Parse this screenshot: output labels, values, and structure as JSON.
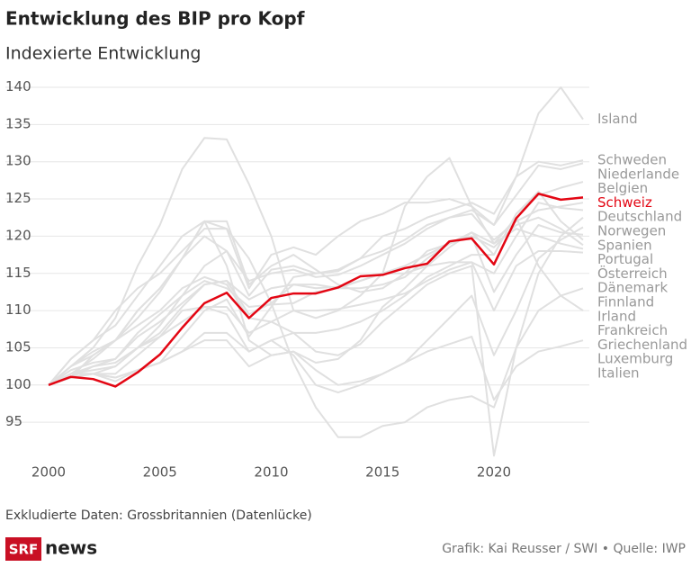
{
  "chart_data": {
    "type": "line",
    "title": "Entwicklung des BIP pro Kopf",
    "subtitle": "Indexierte Entwicklung",
    "note": "Exkludierte Daten: Grossbritannien (Datenlücke)",
    "credit": "Grafik: Kai Reusser / SWI • Quelle: IWP",
    "logo": {
      "brand": "SRF",
      "product": "news"
    },
    "x": [
      2000,
      2001,
      2002,
      2003,
      2004,
      2005,
      2006,
      2007,
      2008,
      2009,
      2010,
      2011,
      2012,
      2013,
      2014,
      2015,
      2016,
      2017,
      2018,
      2019,
      2020,
      2021,
      2022,
      2023,
      2024
    ],
    "xlim": [
      2000,
      2024
    ],
    "xticks": [
      2000,
      2005,
      2010,
      2015,
      2020
    ],
    "ylim": [
      90,
      140
    ],
    "yticks": [
      95,
      100,
      105,
      110,
      115,
      120,
      125,
      130,
      135,
      140
    ],
    "grid": true,
    "series": [
      {
        "name": "Island",
        "color": "#e0e0e0",
        "label_color": "#999999",
        "values": [
          100,
          102.5,
          105,
          109,
          116,
          121.5,
          129,
          133.2,
          133,
          127,
          120,
          110,
          109,
          110,
          112,
          115,
          124,
          128,
          130.5,
          124,
          121.5,
          128,
          136.5,
          140,
          135.7
        ]
      },
      {
        "name": "Schweden",
        "color": "#e0e0e0",
        "label_color": "#999999",
        "values": [
          100,
          101.5,
          103.5,
          106,
          110,
          113,
          117,
          120,
          118,
          112,
          115.5,
          116,
          115,
          115.5,
          117,
          120,
          121,
          122.5,
          123.5,
          124.5,
          123,
          128,
          130,
          129.5,
          130.2
        ]
      },
      {
        "name": "Niederlande",
        "color": "#e0e0e0",
        "label_color": "#999999",
        "values": [
          100,
          101.5,
          102,
          102.5,
          105,
          108,
          112,
          116,
          118,
          114,
          115,
          115.5,
          114.5,
          114.8,
          116,
          117.5,
          119,
          121,
          122.5,
          123.5,
          121.5,
          125.5,
          129.5,
          129,
          129.8
        ]
      },
      {
        "name": "Belgien",
        "color": "#e0e0e0",
        "label_color": "#999999",
        "values": [
          100,
          101,
          102.5,
          103.5,
          106.5,
          108.5,
          111,
          113.5,
          114,
          111.5,
          113,
          113.5,
          113,
          113.2,
          114,
          115,
          116,
          117.5,
          119,
          120.5,
          117.5,
          123,
          125.5,
          126.5,
          127.3
        ]
      },
      {
        "name": "Schweiz",
        "color": "#e30613",
        "label_color": "#e30613",
        "values": [
          100,
          101.1,
          100.8,
          99.8,
          101.7,
          104.1,
          107.7,
          111,
          112.4,
          109,
          111.7,
          112.3,
          112.3,
          113.1,
          114.6,
          114.8,
          115.7,
          116.3,
          119.3,
          119.7,
          116.2,
          122.4,
          125.7,
          124.9,
          125.2
        ]
      },
      {
        "name": "Deutschland",
        "color": "#e0e0e0",
        "label_color": "#999999",
        "values": [
          100,
          101.5,
          101.5,
          101,
          102,
          103,
          106.5,
          110,
          111.5,
          106.5,
          110.5,
          114.5,
          115,
          115.3,
          117,
          118,
          119.5,
          121.5,
          122.5,
          123,
          119.5,
          122,
          123.5,
          124,
          124.5
        ]
      },
      {
        "name": "Norwegen",
        "color": "#e0e0e0",
        "label_color": "#999999",
        "values": [
          100,
          102,
          103,
          103.5,
          107,
          109.5,
          112,
          114,
          113,
          110.5,
          110.8,
          111,
          112.5,
          113,
          114,
          115,
          115,
          116,
          116.5,
          116.5,
          115,
          120,
          124.5,
          123.8,
          123.5
        ]
      },
      {
        "name": "Spanien",
        "color": "#e0e0e0",
        "label_color": "#999999",
        "values": [
          100,
          102.5,
          104.5,
          106,
          108,
          110,
          113,
          114.5,
          113.5,
          109,
          108.5,
          107,
          104.5,
          104,
          105.5,
          108.5,
          111,
          113.5,
          115,
          116,
          90.5,
          105,
          115,
          120,
          122.5
        ]
      },
      {
        "name": "Portugal",
        "color": "#e0e0e0",
        "label_color": "#999999",
        "values": [
          100,
          101.5,
          101.5,
          100.5,
          102,
          103,
          104.5,
          107,
          107,
          104.5,
          106,
          104,
          100,
          99,
          100,
          101.5,
          103,
          106,
          109,
          112,
          104,
          110,
          117,
          119.5,
          121.2
        ]
      },
      {
        "name": "Österreich",
        "color": "#e0e0e0",
        "label_color": "#999999",
        "values": [
          100,
          101,
          101.5,
          102.5,
          105,
          107,
          110.5,
          113.5,
          114,
          109.5,
          111,
          113.5,
          113.5,
          113,
          113,
          113.5,
          114.5,
          117,
          119,
          120,
          112.5,
          117.5,
          121.5,
          120.5,
          120.2
        ]
      },
      {
        "name": "Dänemark",
        "color": "#e0e0e0",
        "label_color": "#999999",
        "values": [
          100,
          101,
          101.5,
          101.5,
          104,
          106.5,
          110,
          110.5,
          109.5,
          104.5,
          106,
          107,
          107,
          107.5,
          108.5,
          110,
          112,
          114.5,
          116,
          117.5,
          117.5,
          123,
          126,
          122,
          119.5
        ]
      },
      {
        "name": "Finnland",
        "color": "#e0e0e0",
        "label_color": "#999999",
        "values": [
          100,
          102.5,
          104,
          106,
          110,
          113,
          117,
          122,
          122,
          113.5,
          116,
          117.5,
          115.5,
          113.5,
          112.5,
          113,
          115,
          118,
          119,
          120,
          118.5,
          121.5,
          122.5,
          121,
          118.8
        ]
      },
      {
        "name": "Irland",
        "color": "#e0e0e0",
        "label_color": "#999999",
        "values": [
          100,
          103.5,
          106,
          108,
          112,
          116,
          120,
          122,
          116,
          106,
          104,
          104.5,
          103,
          103.5,
          106,
          110.5,
          113,
          116,
          118.5,
          120.5,
          119,
          121,
          120,
          119,
          118.3
        ]
      },
      {
        "name": "Frankreich",
        "color": "#e0e0e0",
        "label_color": "#999999",
        "values": [
          100,
          101.5,
          102.5,
          103,
          105,
          106.5,
          108.5,
          110.5,
          110.5,
          107,
          108.5,
          110,
          110,
          110.2,
          110.8,
          111.5,
          112.3,
          114,
          115.5,
          116.5,
          110,
          116,
          118,
          118,
          117.8
        ]
      },
      {
        "name": "Griechenland",
        "color": "#e0e0e0",
        "label_color": "#999999",
        "values": [
          100,
          103.5,
          106,
          110,
          113,
          115,
          118,
          121,
          121,
          117,
          111,
          103,
          97,
          93,
          93,
          94.5,
          95,
          97,
          98,
          98.5,
          97,
          105,
          110,
          112,
          113
        ]
      },
      {
        "name": "Luxemburg",
        "color": "#e0e0e0",
        "label_color": "#999999",
        "values": [
          100,
          101,
          104,
          106,
          109,
          112.5,
          117,
          122,
          121,
          113,
          117.5,
          118.5,
          117.5,
          120,
          122,
          123,
          124.5,
          124.5,
          125,
          124,
          119,
          122.5,
          116,
          112,
          110
        ]
      },
      {
        "name": "Italien",
        "color": "#e0e0e0",
        "label_color": "#999999",
        "values": [
          100,
          101.5,
          101.5,
          101,
          102,
          103,
          104.5,
          106,
          106,
          102.5,
          104,
          104.5,
          102,
          100,
          100.5,
          101.5,
          103,
          104.5,
          105.5,
          106.5,
          98,
          102.5,
          104.5,
          105.2,
          106
        ]
      }
    ]
  }
}
